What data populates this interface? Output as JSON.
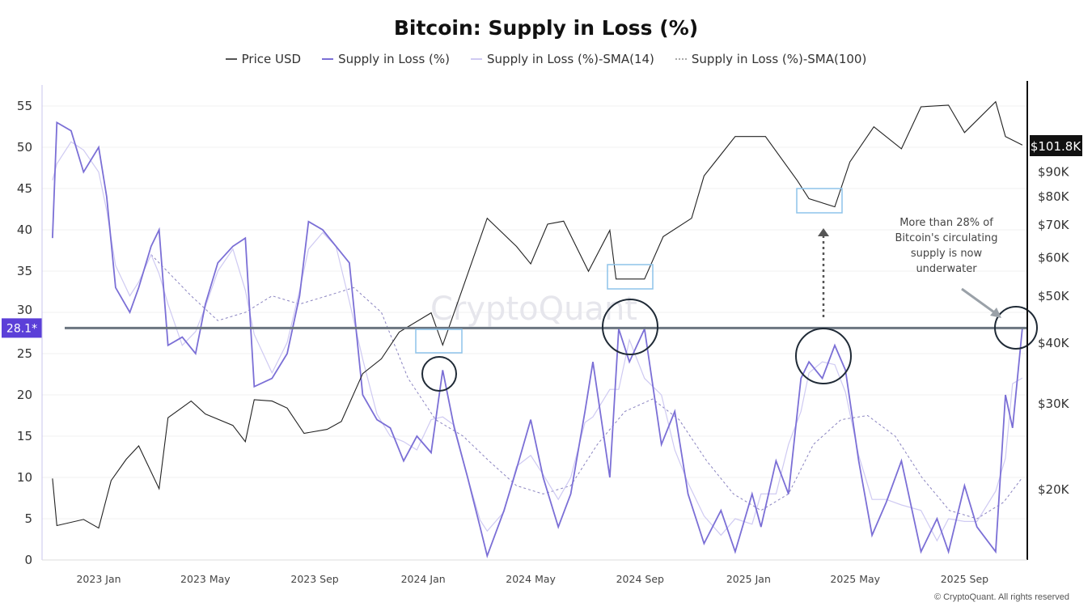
{
  "chart_data": {
    "type": "line",
    "title": "Bitcoin: Supply in Loss (%)",
    "legend": [
      "Price USD",
      "Supply in Loss (%)",
      "Supply in Loss (%)-SMA(14)",
      "Supply in Loss (%)-SMA(100)"
    ],
    "legend_position": "top",
    "colors": {
      "price": "#222222",
      "supply": "#7b6fd6",
      "sma14": "#b7b0ea",
      "sma100": "#8a83c0",
      "highlight": "#5b3fd8"
    },
    "y_left": {
      "ticks": [
        0,
        5,
        10,
        15,
        20,
        25,
        30,
        35,
        40,
        45,
        50,
        55
      ],
      "range": [
        0,
        55
      ]
    },
    "y_right": {
      "scale": "log",
      "ticks": [
        "$20K",
        "$30K",
        "$40K",
        "$50K",
        "$60K",
        "$70K",
        "$80K",
        "$90K"
      ],
      "tick_values": [
        20000,
        30000,
        40000,
        50000,
        60000,
        70000,
        80000,
        90000
      ],
      "current_label": "$101.8K"
    },
    "x_ticks": [
      {
        "date": "2023-01-01",
        "label": "2023 Jan"
      },
      {
        "date": "2023-05-01",
        "label": "2023 May"
      },
      {
        "date": "2023-09-01",
        "label": "2023 Sep"
      },
      {
        "date": "2024-01-01",
        "label": "2024 Jan"
      },
      {
        "date": "2024-05-01",
        "label": "2024 May"
      },
      {
        "date": "2024-09-01",
        "label": "2024 Sep"
      },
      {
        "date": "2025-01-01",
        "label": "2025 Jan"
      },
      {
        "date": "2025-05-01",
        "label": "2025 May"
      },
      {
        "date": "2025-09-01",
        "label": "2025 Sep"
      }
    ],
    "grid": true,
    "reference_line": {
      "value": 28.1,
      "label": "28.1*"
    },
    "price": [
      [
        "2022-11-10",
        21000
      ],
      [
        "2022-11-15",
        16800
      ],
      [
        "2022-12-15",
        17300
      ],
      [
        "2023-01-01",
        16600
      ],
      [
        "2023-01-15",
        20800
      ],
      [
        "2023-02-01",
        23000
      ],
      [
        "2023-02-15",
        24500
      ],
      [
        "2023-03-10",
        20000
      ],
      [
        "2023-03-20",
        28000
      ],
      [
        "2023-04-15",
        30300
      ],
      [
        "2023-05-01",
        28500
      ],
      [
        "2023-06-01",
        27000
      ],
      [
        "2023-06-15",
        25000
      ],
      [
        "2023-06-25",
        30500
      ],
      [
        "2023-07-15",
        30300
      ],
      [
        "2023-08-01",
        29300
      ],
      [
        "2023-08-20",
        26000
      ],
      [
        "2023-09-15",
        26500
      ],
      [
        "2023-10-01",
        27500
      ],
      [
        "2023-10-25",
        34500
      ],
      [
        "2023-11-15",
        37000
      ],
      [
        "2023-12-05",
        42000
      ],
      [
        "2024-01-10",
        46000
      ],
      [
        "2024-01-23",
        39500
      ],
      [
        "2024-02-15",
        52000
      ],
      [
        "2024-03-13",
        72000
      ],
      [
        "2024-04-15",
        63000
      ],
      [
        "2024-05-01",
        58000
      ],
      [
        "2024-05-20",
        70000
      ],
      [
        "2024-06-07",
        71000
      ],
      [
        "2024-07-05",
        56000
      ],
      [
        "2024-07-29",
        68000
      ],
      [
        "2024-08-05",
        54000
      ],
      [
        "2024-09-06",
        54000
      ],
      [
        "2024-09-27",
        66000
      ],
      [
        "2024-10-29",
        72000
      ],
      [
        "2024-11-12",
        88000
      ],
      [
        "2024-12-17",
        106000
      ],
      [
        "2025-01-20",
        106000
      ],
      [
        "2025-02-25",
        86000
      ],
      [
        "2025-03-10",
        79000
      ],
      [
        "2025-04-08",
        76000
      ],
      [
        "2025-04-25",
        94000
      ],
      [
        "2025-05-22",
        111000
      ],
      [
        "2025-06-22",
        100000
      ],
      [
        "2025-07-14",
        122000
      ],
      [
        "2025-08-14",
        123000
      ],
      [
        "2025-09-01",
        108000
      ],
      [
        "2025-10-06",
        125000
      ],
      [
        "2025-10-17",
        106000
      ],
      [
        "2025-11-05",
        101800
      ]
    ],
    "supply_in_loss": [
      [
        "2022-11-10",
        39
      ],
      [
        "2022-11-15",
        53
      ],
      [
        "2022-12-01",
        52
      ],
      [
        "2022-12-15",
        47
      ],
      [
        "2023-01-01",
        50
      ],
      [
        "2023-01-10",
        44
      ],
      [
        "2023-01-20",
        33
      ],
      [
        "2023-02-05",
        30
      ],
      [
        "2023-02-15",
        33
      ],
      [
        "2023-03-01",
        38
      ],
      [
        "2023-03-10",
        40
      ],
      [
        "2023-03-20",
        26
      ],
      [
        "2023-04-05",
        27
      ],
      [
        "2023-04-20",
        25
      ],
      [
        "2023-05-01",
        31
      ],
      [
        "2023-05-15",
        36
      ],
      [
        "2023-06-01",
        38
      ],
      [
        "2023-06-15",
        39
      ],
      [
        "2023-06-25",
        21
      ],
      [
        "2023-07-15",
        22
      ],
      [
        "2023-08-01",
        25
      ],
      [
        "2023-08-15",
        32
      ],
      [
        "2023-08-25",
        41
      ],
      [
        "2023-09-10",
        40
      ],
      [
        "2023-09-25",
        38
      ],
      [
        "2023-10-10",
        36
      ],
      [
        "2023-10-25",
        20
      ],
      [
        "2023-11-10",
        17
      ],
      [
        "2023-11-25",
        16
      ],
      [
        "2023-12-10",
        12
      ],
      [
        "2023-12-25",
        15
      ],
      [
        "2024-01-10",
        13
      ],
      [
        "2024-01-23",
        23
      ],
      [
        "2024-02-05",
        16
      ],
      [
        "2024-02-20",
        10
      ],
      [
        "2024-03-05",
        4
      ],
      [
        "2024-03-13",
        0.5
      ],
      [
        "2024-04-01",
        6
      ],
      [
        "2024-04-15",
        11
      ],
      [
        "2024-05-01",
        17
      ],
      [
        "2024-05-15",
        10
      ],
      [
        "2024-06-01",
        4
      ],
      [
        "2024-06-15",
        8
      ],
      [
        "2024-07-01",
        18
      ],
      [
        "2024-07-10",
        24
      ],
      [
        "2024-07-29",
        10
      ],
      [
        "2024-08-08",
        28
      ],
      [
        "2024-08-20",
        24
      ],
      [
        "2024-09-06",
        28
      ],
      [
        "2024-09-25",
        14
      ],
      [
        "2024-10-10",
        18
      ],
      [
        "2024-10-25",
        8
      ],
      [
        "2024-11-12",
        2
      ],
      [
        "2024-12-01",
        6
      ],
      [
        "2024-12-17",
        1
      ],
      [
        "2025-01-05",
        8
      ],
      [
        "2025-01-15",
        4
      ],
      [
        "2025-02-01",
        12
      ],
      [
        "2025-02-15",
        8
      ],
      [
        "2025-03-01",
        22
      ],
      [
        "2025-03-10",
        24
      ],
      [
        "2025-03-25",
        22
      ],
      [
        "2025-04-08",
        26
      ],
      [
        "2025-04-20",
        23
      ],
      [
        "2025-05-05",
        12
      ],
      [
        "2025-05-20",
        3
      ],
      [
        "2025-06-05",
        7
      ],
      [
        "2025-06-22",
        12
      ],
      [
        "2025-07-14",
        1
      ],
      [
        "2025-08-01",
        5
      ],
      [
        "2025-08-14",
        1
      ],
      [
        "2025-09-01",
        9
      ],
      [
        "2025-09-15",
        4
      ],
      [
        "2025-10-06",
        1
      ],
      [
        "2025-10-17",
        20
      ],
      [
        "2025-10-25",
        16
      ],
      [
        "2025-11-05",
        28.1
      ]
    ],
    "sma100": [
      [
        "2023-03-01",
        37
      ],
      [
        "2023-04-15",
        32
      ],
      [
        "2023-05-15",
        29
      ],
      [
        "2023-06-15",
        30
      ],
      [
        "2023-07-15",
        32
      ],
      [
        "2023-08-15",
        31
      ],
      [
        "2023-09-15",
        32
      ],
      [
        "2023-10-15",
        33
      ],
      [
        "2023-11-15",
        30
      ],
      [
        "2023-12-15",
        22
      ],
      [
        "2024-01-15",
        17
      ],
      [
        "2024-02-15",
        15
      ],
      [
        "2024-03-15",
        12
      ],
      [
        "2024-04-15",
        9
      ],
      [
        "2024-05-15",
        8
      ],
      [
        "2024-06-15",
        9
      ],
      [
        "2024-07-15",
        14
      ],
      [
        "2024-08-15",
        18
      ],
      [
        "2024-09-15",
        19.5
      ],
      [
        "2024-10-15",
        17
      ],
      [
        "2024-11-15",
        12
      ],
      [
        "2024-12-15",
        8
      ],
      [
        "2025-01-15",
        6
      ],
      [
        "2025-02-15",
        8
      ],
      [
        "2025-03-15",
        14
      ],
      [
        "2025-04-15",
        17
      ],
      [
        "2025-05-15",
        17.5
      ],
      [
        "2025-06-15",
        15
      ],
      [
        "2025-07-15",
        10
      ],
      [
        "2025-08-15",
        6
      ],
      [
        "2025-09-15",
        5
      ],
      [
        "2025-10-15",
        7
      ],
      [
        "2025-11-05",
        10
      ]
    ],
    "annotation": "More than 28% of Bitcoin's circulating supply is now underwater"
  },
  "watermark": "CryptoQuant",
  "copyright": "© CryptoQuant. All rights reserved"
}
